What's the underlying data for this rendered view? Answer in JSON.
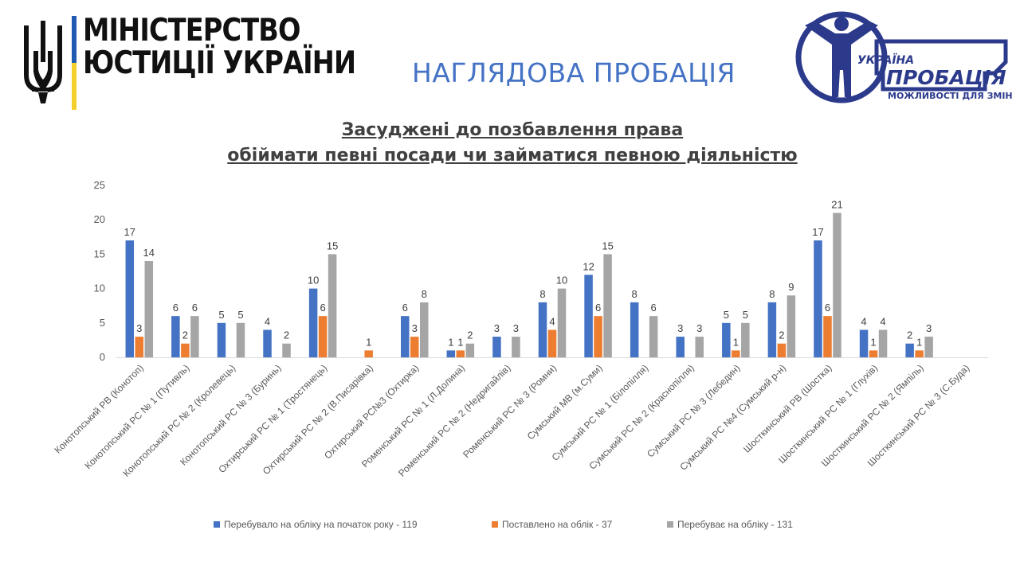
{
  "header": {
    "ministry_line1": "МІНІСТЕРСТВО",
    "ministry_line2": "ЮСТИЦІЇ УКРАЇНИ",
    "page_heading": "НАГЛЯДОВА ПРОБАЦІЯ",
    "logo_text_top": "УКРАЇНА",
    "logo_text_main": "ПРОБАЦІЯ",
    "logo_text_bottom": "МОЖЛИВОСТІ ДЛЯ ЗМІН",
    "flag_colors": {
      "blue": "#1F5BB0",
      "yellow": "#F4D02A"
    },
    "logo_color": "#2C3A8C"
  },
  "chart_data": {
    "type": "bar",
    "title_line1": "Засуджені до позбавлення права",
    "title_line2": "обіймати певні посади чи займатися певною діяльністю",
    "xlabel": "",
    "ylabel": "",
    "ylim": [
      0,
      25
    ],
    "yticks": [
      0,
      5,
      10,
      15,
      20,
      25
    ],
    "grid": false,
    "legend_position": "bottom",
    "categories": [
      "Конотопський РВ (Конотоп)",
      "Конотопський РС № 1 (Путивль)",
      "Конотопський РС № 2 (Кролевець)",
      "Конотопський РС № 3 (Буринь)",
      "Охтирський РС № 1 (Тростянець)",
      "Охтирський РС № 2 (В.Писарівка)",
      "Охтирський РС№3 (Охтирка)",
      "Роменський РС № 1 (Л.Долина)",
      "Роменський РС № 2 (Недригайлів)",
      "Роменський РС № 3 (Ромни)",
      "Сумський МВ (м.Суми)",
      "Сумський РС № 1 (Білопілля)",
      "Сумський РС № 2 (Краснопілля)",
      "Сумський РС № 3 (Лебедин)",
      "Сумський РС №4 (Сумський р-н)",
      "Шосткинський РВ (Шостка)",
      "Шосткинський РС № 1 (Глухів)",
      "Шосткинський РС № 2 (Ямпіль)",
      "Шосткинський РС № 3 (С.Буда)"
    ],
    "series": [
      {
        "name": "Перебувало на обліку на початок року - 119",
        "color": "#4472C4",
        "values": [
          17,
          6,
          5,
          4,
          10,
          null,
          6,
          1,
          3,
          8,
          12,
          8,
          3,
          5,
          8,
          17,
          4,
          2,
          null
        ]
      },
      {
        "name": "Поставлено на облік - 37",
        "color": "#ED7D31",
        "values": [
          3,
          2,
          null,
          null,
          6,
          1,
          3,
          1,
          null,
          4,
          6,
          null,
          null,
          1,
          2,
          6,
          1,
          1,
          null
        ]
      },
      {
        "name": "Перебуває на обліку - 131",
        "color": "#A5A5A5",
        "values": [
          14,
          6,
          5,
          2,
          15,
          null,
          8,
          2,
          3,
          10,
          15,
          6,
          3,
          5,
          9,
          21,
          4,
          3,
          null
        ]
      }
    ]
  }
}
